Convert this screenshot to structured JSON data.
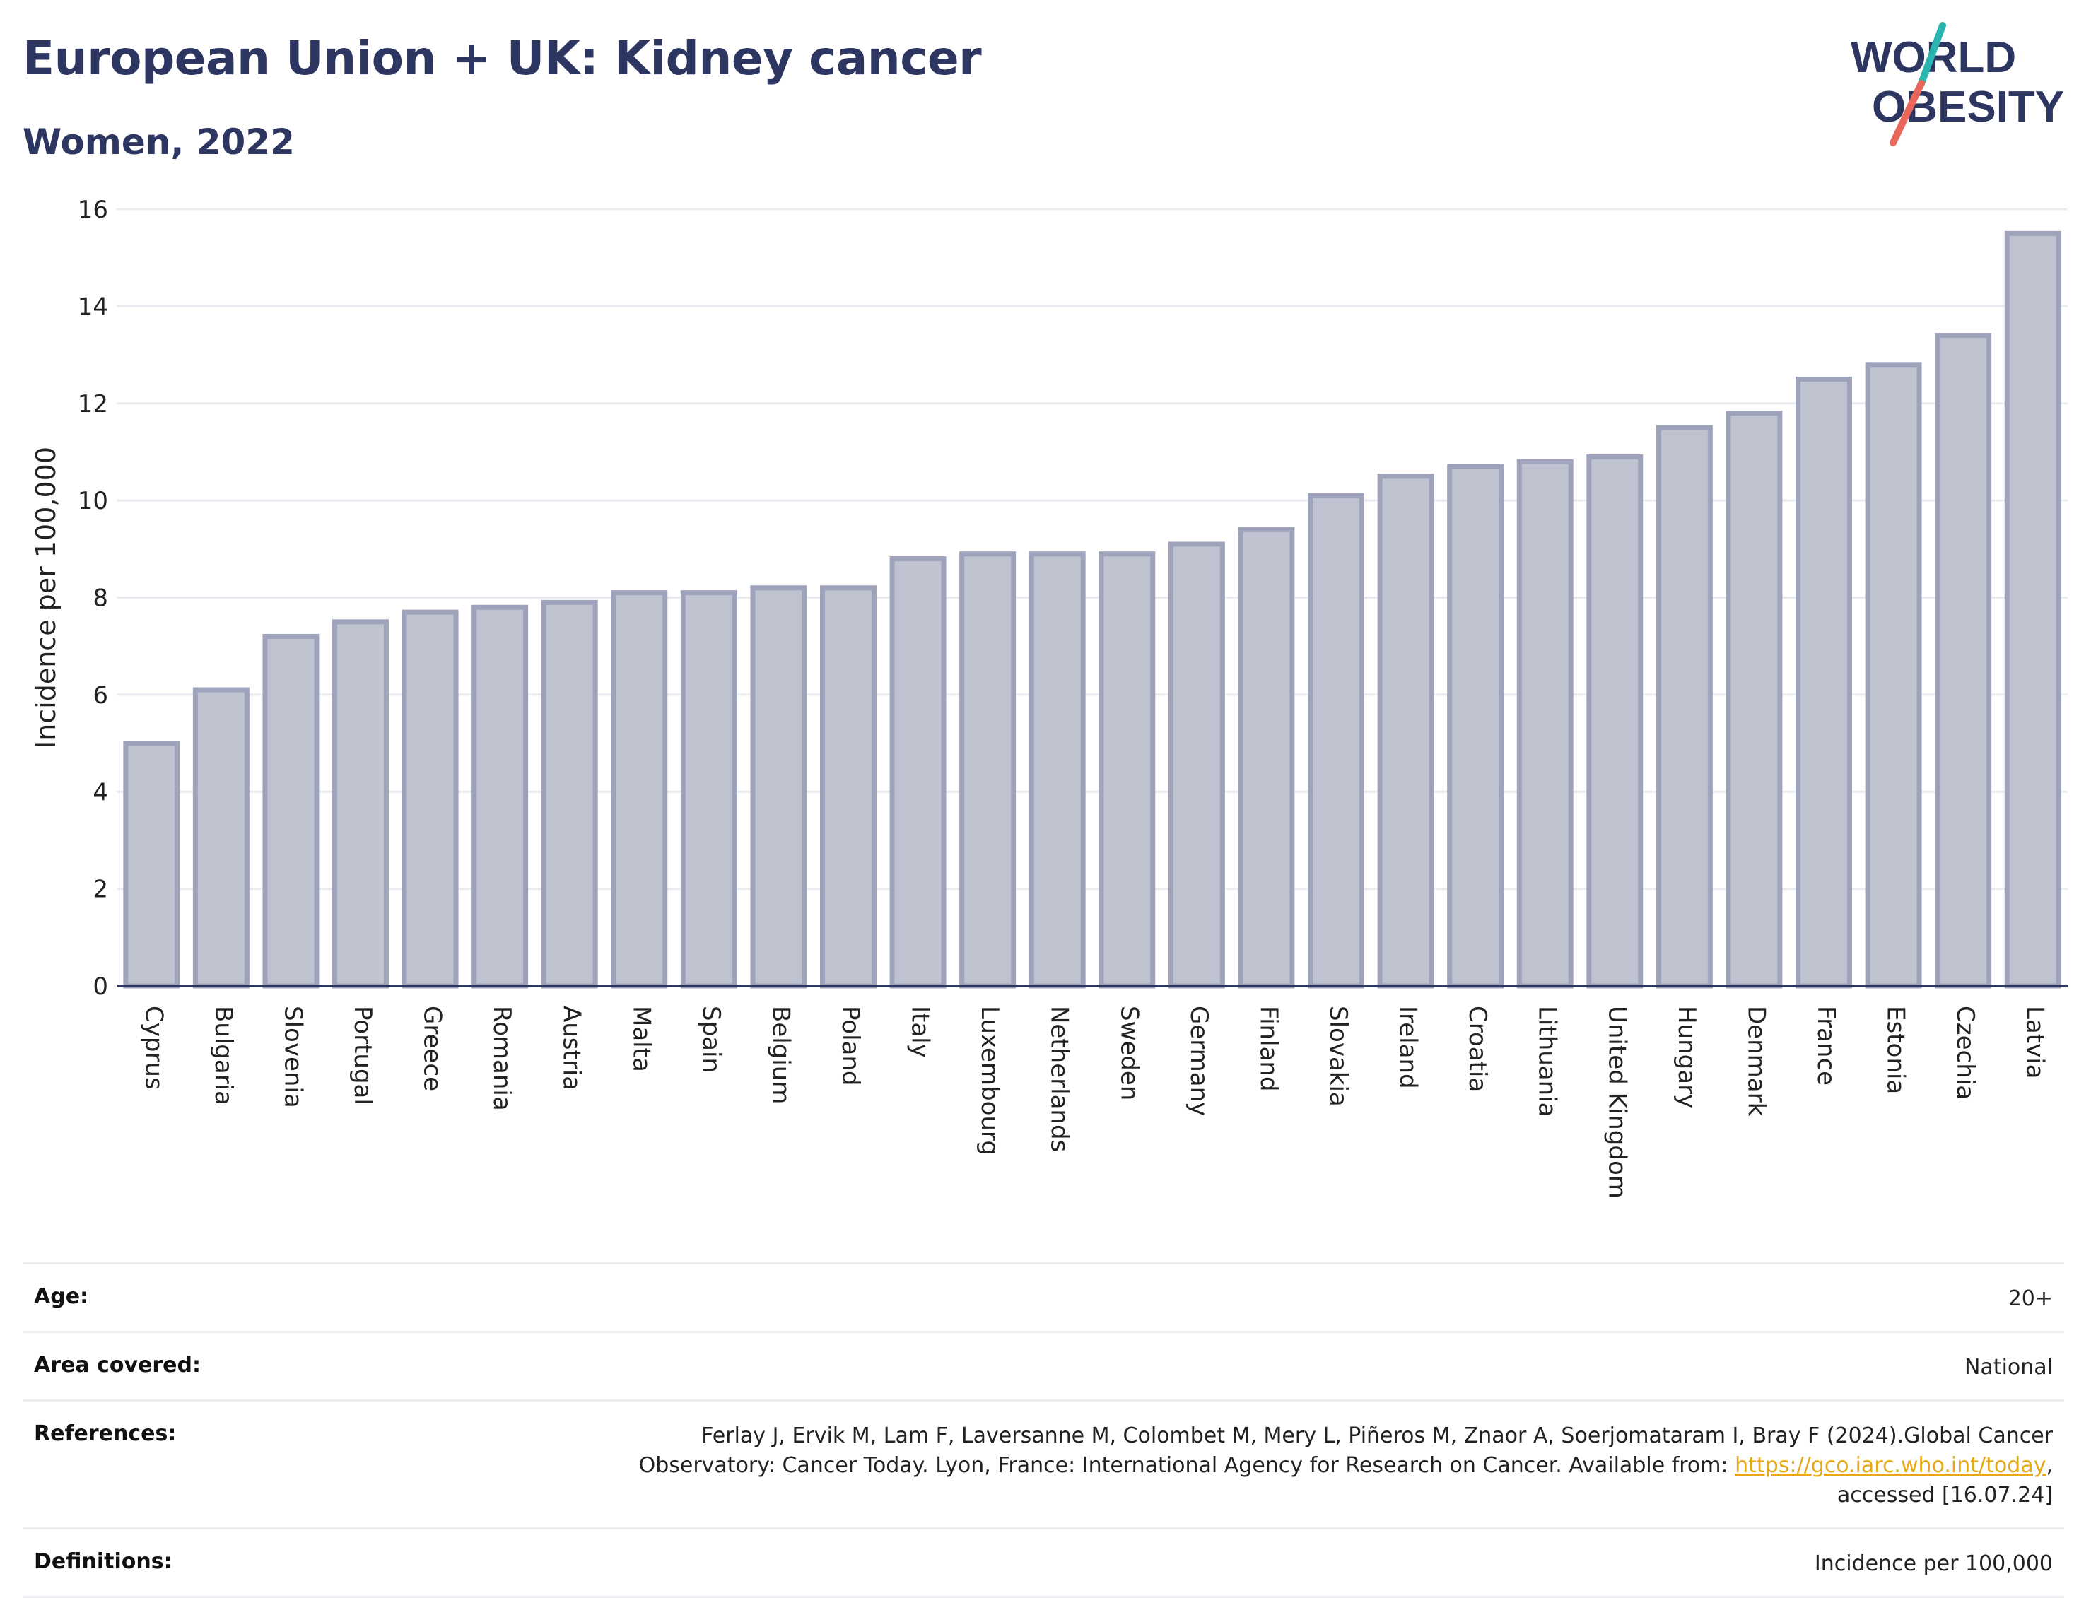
{
  "header": {
    "title": "European Union + UK: Kidney cancer",
    "subtitle": "Women, 2022"
  },
  "logo": {
    "line1": "WORLD",
    "line2": "OBESITY",
    "colors": {
      "text": "#2d3561",
      "slash_teal": "#2bb5b0",
      "slash_coral": "#e8675a"
    }
  },
  "chart_data": {
    "type": "bar",
    "title": "European Union + UK: Kidney cancer",
    "subtitle": "Women, 2022",
    "xlabel": "",
    "ylabel": "Incidence per 100,000",
    "ylim": [
      0,
      16
    ],
    "yticks": [
      0,
      2,
      4,
      6,
      8,
      10,
      12,
      14,
      16
    ],
    "grid": true,
    "bar_fill": "#bfc2cf",
    "bar_stroke": "#9ea3bb",
    "categories": [
      "Cyprus",
      "Bulgaria",
      "Slovenia",
      "Portugal",
      "Greece",
      "Romania",
      "Austria",
      "Malta",
      "Spain",
      "Belgium",
      "Poland",
      "Italy",
      "Luxembourg",
      "Netherlands",
      "Sweden",
      "Germany",
      "Finland",
      "Slovakia",
      "Ireland",
      "Croatia",
      "Lithuania",
      "United Kingdom",
      "Hungary",
      "Denmark",
      "France",
      "Estonia",
      "Czechia",
      "Latvia"
    ],
    "values": [
      5.0,
      6.1,
      7.2,
      7.5,
      7.7,
      7.8,
      7.9,
      8.1,
      8.1,
      8.2,
      8.2,
      8.8,
      8.9,
      8.9,
      8.9,
      9.1,
      9.4,
      10.1,
      10.5,
      10.7,
      10.8,
      10.9,
      11.5,
      11.8,
      12.5,
      12.8,
      13.4,
      15.5
    ]
  },
  "meta": {
    "age_label": "Age:",
    "age_value": "20+",
    "area_label": "Area covered:",
    "area_value": "National",
    "references_label": "References:",
    "references_line1": "Ferlay J, Ervik M, Lam F, Laversanne M, Colombet M, Mery L, Piñeros M, Znaor A, Soerjomataram I, Bray F (2024).Global Cancer",
    "references_line2_pre": "Observatory: Cancer Today. Lyon, France: International Agency for Research on Cancer. Available from: ",
    "references_link": "https://gco.iarc.who.int/today",
    "references_line2_post": ",",
    "references_line3": "accessed [16.07.24]",
    "definitions_label": "Definitions:",
    "definitions_value": "Incidence per 100,000"
  }
}
